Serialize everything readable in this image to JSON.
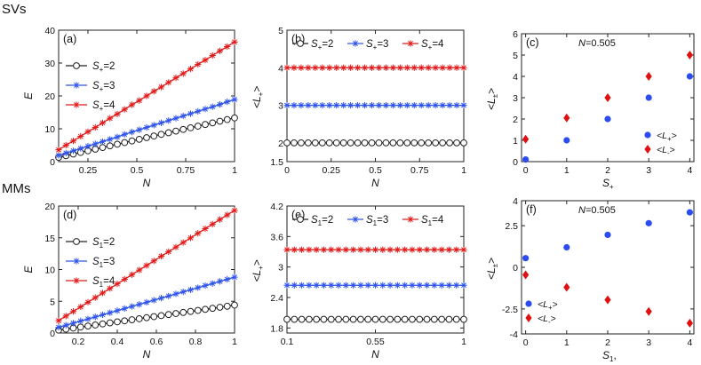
{
  "row_labels": {
    "top": "SVs",
    "bottom": "MMs"
  },
  "colors": {
    "black": "#222222",
    "blue": "#2f54eb",
    "red": "#e21b1b",
    "blue_dot": "#2b4cf0",
    "red_diamond": "#e01010"
  },
  "chart_data": [
    {
      "id": "a",
      "panel_label": "(a)",
      "type": "line",
      "xlabel": "N",
      "ylabel": "E",
      "xlim": [
        0.1,
        1
      ],
      "ylim": [
        0,
        40
      ],
      "xticks": [
        0.25,
        0.5,
        0.75,
        1
      ],
      "xtick_labels": [
        "0.25",
        "0.5",
        "0.75",
        "1"
      ],
      "yticks": [
        0,
        10,
        20,
        30,
        40
      ],
      "ytick_labels": [
        "0",
        "10",
        "20",
        "30",
        "40"
      ],
      "legend": "top-left",
      "x": [
        0.1,
        0.1375,
        0.175,
        0.2125,
        0.25,
        0.2875,
        0.325,
        0.3625,
        0.4,
        0.4375,
        0.475,
        0.5125,
        0.55,
        0.5875,
        0.625,
        0.6625,
        0.7,
        0.7375,
        0.775,
        0.8125,
        0.85,
        0.8875,
        0.925,
        0.9625,
        1.0
      ],
      "series": [
        {
          "name": "S+=2",
          "sub": "+",
          "val": "=2",
          "color": "black",
          "marker": "circle",
          "values": [
            1.3,
            1.8,
            2.3,
            2.8,
            3.3,
            3.8,
            4.3,
            4.8,
            5.3,
            5.8,
            6.3,
            6.8,
            7.3,
            7.8,
            8.3,
            8.8,
            9.3,
            9.8,
            10.3,
            10.8,
            11.3,
            11.8,
            12.3,
            12.8,
            13.3
          ]
        },
        {
          "name": "S+=3",
          "sub": "+",
          "val": "=3",
          "color": "blue",
          "marker": "star",
          "values": [
            1.9,
            2.6,
            3.3,
            4.0,
            4.7,
            5.4,
            6.1,
            6.8,
            7.5,
            8.3,
            9.0,
            9.7,
            10.4,
            11.1,
            11.8,
            12.5,
            13.2,
            13.9,
            14.6,
            15.3,
            16.0,
            16.7,
            17.4,
            18.2,
            18.9
          ]
        },
        {
          "name": "S+=4",
          "sub": "+",
          "val": "=4",
          "color": "red",
          "marker": "star",
          "values": [
            3.6,
            5.0,
            6.3,
            7.7,
            9.1,
            10.4,
            11.8,
            13.2,
            14.5,
            15.9,
            17.3,
            18.6,
            20.0,
            21.4,
            22.7,
            24.1,
            25.5,
            26.8,
            28.2,
            29.6,
            30.9,
            32.3,
            33.7,
            35.0,
            36.4
          ]
        }
      ]
    },
    {
      "id": "b",
      "panel_label": "(b)",
      "type": "line",
      "xlabel": "N",
      "ylabel": "<L+>",
      "ylabel_main": "<L",
      "ylabel_sub": "+",
      "ylabel_end": ">",
      "xlim": [
        0,
        1
      ],
      "ylim": [
        1.5,
        5
      ],
      "xticks": [
        0,
        0.25,
        0.5,
        0.75,
        1
      ],
      "xtick_labels": [
        "0",
        "0.25",
        "0.5",
        "0.75",
        "1"
      ],
      "yticks": [
        1.5,
        2,
        3,
        4,
        5
      ],
      "ytick_labels": [
        "1.5",
        "2",
        "3",
        "4",
        "5"
      ],
      "legend": "top",
      "x": [
        0,
        0.04,
        0.08,
        0.12,
        0.16,
        0.2,
        0.24,
        0.28,
        0.32,
        0.36,
        0.4,
        0.44,
        0.48,
        0.52,
        0.56,
        0.6,
        0.64,
        0.68,
        0.72,
        0.76,
        0.8,
        0.84,
        0.88,
        0.92,
        0.96,
        1.0
      ],
      "series": [
        {
          "name": "S+=2",
          "sub": "+",
          "val": "=2",
          "color": "black",
          "marker": "circle",
          "constant": 2
        },
        {
          "name": "S+=3",
          "sub": "+",
          "val": "=3",
          "color": "blue",
          "marker": "star",
          "constant": 3
        },
        {
          "name": "S+=4",
          "sub": "+",
          "val": "=4",
          "color": "red",
          "marker": "star",
          "constant": 4
        }
      ]
    },
    {
      "id": "c",
      "panel_label": "(c)",
      "type": "scatter",
      "annotation": "N=0.505",
      "xlabel": "S+",
      "xlabel_main": "S",
      "xlabel_sub": "+",
      "ylabel": "<L±>",
      "ylabel_main": "<L",
      "ylabel_sub": "±",
      "ylabel_end": ">",
      "xlim": [
        -0.1,
        4.1
      ],
      "ylim": [
        0,
        6
      ],
      "xticks": [
        0,
        1,
        2,
        3,
        4
      ],
      "xtick_labels": [
        "0",
        "1",
        "2",
        "3",
        "4"
      ],
      "yticks": [
        0,
        1,
        2,
        3,
        4,
        5,
        6
      ],
      "ytick_labels": [
        "0",
        "1",
        "2",
        "3",
        "4",
        "5",
        "6"
      ],
      "legend": "bottom-right",
      "series": [
        {
          "name": "<L+>",
          "main": "<L",
          "sub": "+",
          "end": ">",
          "color": "blue_dot",
          "marker": "dot",
          "x": [
            0,
            1,
            2,
            3,
            4
          ],
          "values": [
            0.1,
            1.0,
            2.0,
            3.0,
            4.0
          ]
        },
        {
          "name": "<L->",
          "main": "<L",
          "sub": "-",
          "end": ">",
          "color": "red_diamond",
          "marker": "diamond",
          "x": [
            0,
            1,
            2,
            3,
            4
          ],
          "values": [
            1.05,
            2.05,
            3.0,
            4.0,
            5.0
          ]
        }
      ]
    },
    {
      "id": "d",
      "panel_label": "(d)",
      "type": "line",
      "xlabel": "N",
      "ylabel": "E",
      "xlim": [
        0.1,
        1
      ],
      "ylim": [
        0,
        20
      ],
      "xticks": [
        0.2,
        0.4,
        0.6,
        0.8,
        1
      ],
      "xtick_labels": [
        "0.2",
        "0.4",
        "0.6",
        "0.8",
        "1"
      ],
      "yticks": [
        0,
        5,
        10,
        15,
        20
      ],
      "ytick_labels": [
        "0",
        "5",
        "10",
        "15",
        "20"
      ],
      "legend": "top-left",
      "x": [
        0.1,
        0.1375,
        0.175,
        0.2125,
        0.25,
        0.2875,
        0.325,
        0.3625,
        0.4,
        0.4375,
        0.475,
        0.5125,
        0.55,
        0.5875,
        0.625,
        0.6625,
        0.7,
        0.7375,
        0.775,
        0.8125,
        0.85,
        0.8875,
        0.925,
        0.9625,
        1.0
      ],
      "series": [
        {
          "name": "S1=2",
          "sub": "1",
          "val": "=2",
          "color": "black",
          "marker": "circle",
          "values": [
            0.45,
            0.61,
            0.78,
            0.94,
            1.1,
            1.27,
            1.43,
            1.6,
            1.76,
            1.92,
            2.09,
            2.25,
            2.42,
            2.58,
            2.74,
            2.91,
            3.07,
            3.24,
            3.4,
            3.56,
            3.73,
            3.89,
            4.06,
            4.22,
            4.4
          ]
        },
        {
          "name": "S1=3",
          "sub": "1",
          "val": "=3",
          "color": "blue",
          "marker": "star",
          "values": [
            0.9,
            1.23,
            1.56,
            1.89,
            2.21,
            2.54,
            2.87,
            3.2,
            3.53,
            3.86,
            4.19,
            4.51,
            4.84,
            5.17,
            5.5,
            5.83,
            6.16,
            6.49,
            6.81,
            7.14,
            7.47,
            7.8,
            8.13,
            8.46,
            8.8
          ]
        },
        {
          "name": "S1=4",
          "sub": "1",
          "val": "=4",
          "color": "red",
          "marker": "star",
          "values": [
            1.95,
            2.68,
            3.4,
            4.12,
            4.85,
            5.57,
            6.3,
            7.02,
            7.74,
            8.47,
            9.19,
            9.92,
            10.64,
            11.36,
            12.09,
            12.81,
            13.53,
            14.26,
            14.98,
            15.71,
            16.43,
            17.15,
            17.88,
            18.6,
            19.3
          ]
        }
      ]
    },
    {
      "id": "e",
      "panel_label": "(e)",
      "type": "line",
      "xlabel": "N",
      "ylabel": "<L+>",
      "ylabel_main": "<L",
      "ylabel_sub": "+",
      "ylabel_end": ">",
      "xlim": [
        0.1,
        1
      ],
      "ylim": [
        1.7,
        4.2
      ],
      "xticks": [
        0.1,
        0.55,
        1
      ],
      "xtick_labels": [
        "0.1",
        "0.55",
        "1"
      ],
      "yticks": [
        1.8,
        2.4,
        3,
        3.6,
        4.2
      ],
      "ytick_labels": [
        "1.8",
        "2.4",
        "3",
        "3.6",
        "4.2"
      ],
      "legend": "top",
      "x": [
        0.1,
        0.1375,
        0.175,
        0.2125,
        0.25,
        0.2875,
        0.325,
        0.3625,
        0.4,
        0.4375,
        0.475,
        0.5125,
        0.55,
        0.5875,
        0.625,
        0.6625,
        0.7,
        0.7375,
        0.775,
        0.8125,
        0.85,
        0.8875,
        0.925,
        0.9625,
        1.0
      ],
      "series": [
        {
          "name": "S1=2",
          "sub": "1",
          "val": "=2",
          "color": "black",
          "marker": "circle",
          "constant": 1.97
        },
        {
          "name": "S1=3",
          "sub": "1",
          "val": "=3",
          "color": "blue",
          "marker": "star",
          "constant": 2.64
        },
        {
          "name": "S1=4",
          "sub": "1",
          "val": "=4",
          "color": "red",
          "marker": "star",
          "constant": 3.34
        }
      ]
    },
    {
      "id": "f",
      "panel_label": "(f)",
      "type": "scatter",
      "annotation": "N=0.505",
      "xlabel": "S1",
      "xlabel_main": "S",
      "xlabel_sub": "1",
      "xlabel_end": ",",
      "ylabel": "<L±>",
      "ylabel_main": "<L",
      "ylabel_sub": "±",
      "ylabel_end": ">",
      "xlim": [
        -0.1,
        4.1
      ],
      "ylim": [
        -4,
        4
      ],
      "xticks": [
        0,
        1,
        2,
        3,
        4
      ],
      "xtick_labels": [
        "0",
        "1",
        "2",
        "3",
        "4"
      ],
      "yticks": [
        -4,
        -2.5,
        0,
        2.5,
        4
      ],
      "ytick_labels": [
        "-4",
        "-2.5",
        "0",
        "2.5",
        "4"
      ],
      "legend": "bottom-left",
      "series": [
        {
          "name": "<L+>",
          "main": "<L",
          "sub": "+",
          "end": ">",
          "color": "blue_dot",
          "marker": "dot",
          "x": [
            0,
            1,
            2,
            3,
            4
          ],
          "values": [
            0.55,
            1.2,
            1.95,
            2.65,
            3.3
          ]
        },
        {
          "name": "<L->",
          "main": "<L",
          "sub": "-",
          "end": ">",
          "color": "red_diamond",
          "marker": "diamond",
          "x": [
            0,
            1,
            2,
            3,
            4
          ],
          "values": [
            -0.45,
            -1.2,
            -1.95,
            -2.65,
            -3.35
          ]
        }
      ]
    }
  ]
}
